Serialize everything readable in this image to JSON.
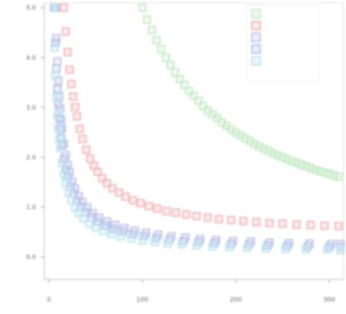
{
  "chart_data": {
    "type": "scatter",
    "title": "",
    "xlabel": "",
    "ylabel": "",
    "xlim": [
      -5,
      315
    ],
    "ylim": [
      -0.45,
      5.1
    ],
    "xticks": [
      0,
      100,
      200,
      300
    ],
    "xtick_labels": [
      "0",
      "100",
      "200",
      "300"
    ],
    "yticks": [
      0,
      1,
      2,
      3,
      4,
      5
    ],
    "ytick_labels": [
      "0.0",
      "1.0",
      "2.0",
      "3.0",
      "4.0",
      "5.0"
    ],
    "grid": false,
    "legend_position": "top-right",
    "marker": "square",
    "series": [
      {
        "color": "#c6ecc6",
        "points": [
          [
            100,
            5.0
          ],
          [
            105,
            4.76
          ],
          [
            110,
            4.55
          ],
          [
            115,
            4.35
          ],
          [
            120,
            4.17
          ],
          [
            125,
            4.0
          ],
          [
            130,
            3.85
          ],
          [
            135,
            3.7
          ],
          [
            140,
            3.57
          ],
          [
            145,
            3.45
          ],
          [
            150,
            3.33
          ],
          [
            155,
            3.23
          ],
          [
            160,
            3.13
          ],
          [
            165,
            3.03
          ],
          [
            170,
            2.94
          ],
          [
            175,
            2.86
          ],
          [
            180,
            2.78
          ],
          [
            185,
            2.7
          ],
          [
            190,
            2.63
          ],
          [
            195,
            2.56
          ],
          [
            200,
            2.5
          ],
          [
            205,
            2.44
          ],
          [
            210,
            2.38
          ],
          [
            215,
            2.33
          ],
          [
            220,
            2.27
          ],
          [
            225,
            2.22
          ],
          [
            230,
            2.17
          ],
          [
            235,
            2.13
          ],
          [
            240,
            2.08
          ],
          [
            245,
            2.04
          ],
          [
            250,
            2.0
          ],
          [
            255,
            1.96
          ],
          [
            260,
            1.92
          ],
          [
            265,
            1.89
          ],
          [
            270,
            1.85
          ],
          [
            275,
            1.82
          ],
          [
            280,
            1.79
          ],
          [
            285,
            1.75
          ],
          [
            290,
            1.72
          ],
          [
            295,
            1.69
          ],
          [
            300,
            1.67
          ],
          [
            305,
            1.64
          ],
          [
            310,
            1.61
          ]
        ]
      },
      {
        "color": "#f5b8b8",
        "points": [
          [
            16,
            5.0
          ],
          [
            18,
            4.52
          ],
          [
            20,
            4.11
          ],
          [
            22,
            3.76
          ],
          [
            24,
            3.47
          ],
          [
            26,
            3.22
          ],
          [
            28,
            3.01
          ],
          [
            30,
            2.82
          ],
          [
            33,
            2.57
          ],
          [
            36,
            2.37
          ],
          [
            40,
            2.15
          ],
          [
            44,
            1.97
          ],
          [
            48,
            1.83
          ],
          [
            52,
            1.71
          ],
          [
            57,
            1.58
          ],
          [
            62,
            1.48
          ],
          [
            68,
            1.38
          ],
          [
            75,
            1.29
          ],
          [
            82,
            1.21
          ],
          [
            90,
            1.14
          ],
          [
            98,
            1.08
          ],
          [
            107,
            1.02
          ],
          [
            116,
            0.97
          ],
          [
            126,
            0.92
          ],
          [
            136,
            0.89
          ],
          [
            147,
            0.85
          ],
          [
            158,
            0.82
          ],
          [
            170,
            0.79
          ],
          [
            182,
            0.76
          ],
          [
            195,
            0.74
          ],
          [
            208,
            0.72
          ],
          [
            222,
            0.7
          ],
          [
            236,
            0.68
          ],
          [
            250,
            0.67
          ],
          [
            265,
            0.65
          ],
          [
            280,
            0.64
          ],
          [
            295,
            0.63
          ],
          [
            310,
            0.62
          ]
        ]
      },
      {
        "color": "#c4c4ea",
        "points": [
          [
            7,
            5.0
          ],
          [
            8,
            4.39
          ],
          [
            9,
            3.92
          ],
          [
            10,
            3.54
          ],
          [
            11,
            3.23
          ],
          [
            12,
            2.98
          ],
          [
            13,
            2.76
          ],
          [
            14,
            2.58
          ],
          [
            16,
            2.27
          ],
          [
            18,
            2.04
          ],
          [
            20,
            1.85
          ],
          [
            22,
            1.7
          ],
          [
            25,
            1.51
          ],
          [
            28,
            1.37
          ],
          [
            32,
            1.22
          ],
          [
            36,
            1.1
          ],
          [
            41,
            0.99
          ],
          [
            47,
            0.88
          ],
          [
            54,
            0.79
          ],
          [
            62,
            0.71
          ],
          [
            71,
            0.64
          ],
          [
            81,
            0.58
          ],
          [
            92,
            0.53
          ],
          [
            104,
            0.49
          ],
          [
            117,
            0.45
          ],
          [
            131,
            0.41
          ],
          [
            146,
            0.39
          ],
          [
            162,
            0.36
          ],
          [
            179,
            0.34
          ],
          [
            197,
            0.32
          ],
          [
            216,
            0.31
          ],
          [
            236,
            0.29
          ],
          [
            257,
            0.28
          ],
          [
            279,
            0.27
          ],
          [
            302,
            0.26
          ],
          [
            312,
            0.26
          ]
        ]
      },
      {
        "color": "#b3c7e8",
        "points": [
          [
            6,
            5.0
          ],
          [
            7,
            4.3
          ],
          [
            8,
            3.78
          ],
          [
            9,
            3.37
          ],
          [
            10,
            3.05
          ],
          [
            11,
            2.79
          ],
          [
            12,
            2.57
          ],
          [
            13,
            2.39
          ],
          [
            14,
            2.23
          ],
          [
            16,
            1.97
          ],
          [
            18,
            1.77
          ],
          [
            20,
            1.61
          ],
          [
            23,
            1.42
          ],
          [
            26,
            1.28
          ],
          [
            30,
            1.13
          ],
          [
            34,
            1.01
          ],
          [
            39,
            0.9
          ],
          [
            45,
            0.8
          ],
          [
            52,
            0.71
          ],
          [
            60,
            0.63
          ],
          [
            69,
            0.56
          ],
          [
            79,
            0.51
          ],
          [
            90,
            0.46
          ],
          [
            102,
            0.42
          ],
          [
            115,
            0.38
          ],
          [
            129,
            0.35
          ],
          [
            144,
            0.32
          ],
          [
            160,
            0.3
          ],
          [
            177,
            0.28
          ],
          [
            195,
            0.26
          ],
          [
            214,
            0.25
          ],
          [
            234,
            0.23
          ],
          [
            255,
            0.22
          ],
          [
            277,
            0.21
          ],
          [
            300,
            0.2
          ],
          [
            312,
            0.2
          ]
        ]
      },
      {
        "color": "#bfe6ef",
        "points": [
          [
            5,
            5.0
          ],
          [
            6,
            4.2
          ],
          [
            7,
            3.63
          ],
          [
            8,
            3.2
          ],
          [
            9,
            2.86
          ],
          [
            10,
            2.59
          ],
          [
            11,
            2.37
          ],
          [
            12,
            2.18
          ],
          [
            14,
            1.89
          ],
          [
            16,
            1.66
          ],
          [
            18,
            1.49
          ],
          [
            21,
            1.29
          ],
          [
            24,
            1.14
          ],
          [
            28,
            0.99
          ],
          [
            32,
            0.88
          ],
          [
            37,
            0.77
          ],
          [
            43,
            0.67
          ],
          [
            50,
            0.59
          ],
          [
            58,
            0.52
          ],
          [
            67,
            0.46
          ],
          [
            77,
            0.41
          ],
          [
            88,
            0.37
          ],
          [
            100,
            0.33
          ],
          [
            113,
            0.3
          ],
          [
            127,
            0.27
          ],
          [
            142,
            0.25
          ],
          [
            158,
            0.23
          ],
          [
            175,
            0.21
          ],
          [
            193,
            0.2
          ],
          [
            212,
            0.18
          ],
          [
            232,
            0.17
          ],
          [
            253,
            0.16
          ],
          [
            275,
            0.15
          ],
          [
            298,
            0.15
          ],
          [
            312,
            0.14
          ]
        ]
      }
    ]
  }
}
